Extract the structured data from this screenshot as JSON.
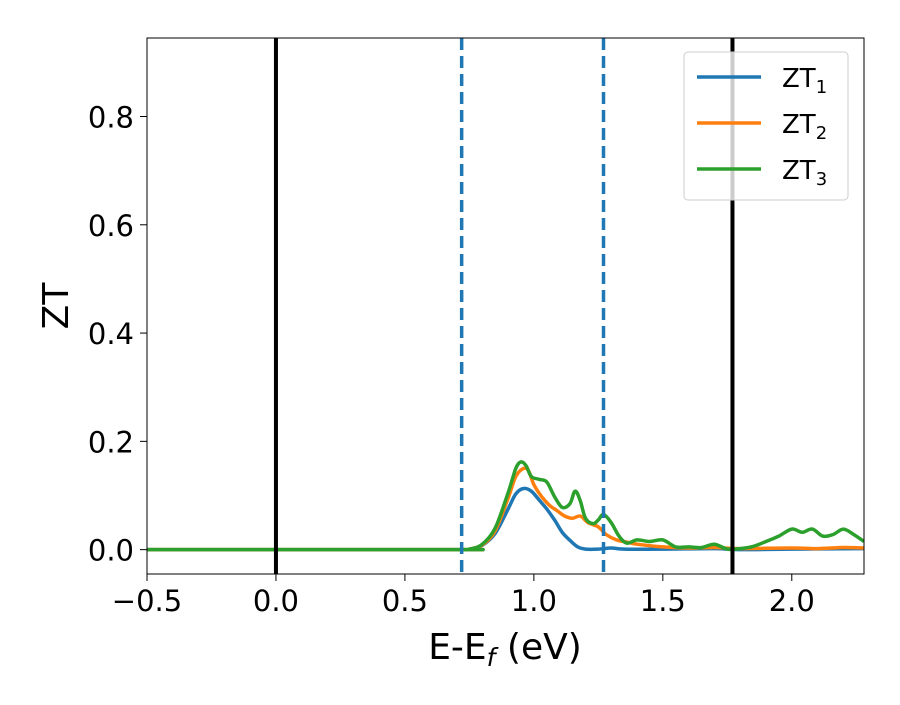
{
  "chart_data": {
    "type": "line",
    "title": "",
    "xlabel": {
      "main": "E-E",
      "sub": "f",
      "unit": " (eV)"
    },
    "ylabel": "ZT",
    "xlim": [
      -0.5,
      2.28
    ],
    "ylim": [
      -0.045,
      0.945
    ],
    "xticks": [
      -0.5,
      0.0,
      0.5,
      1.0,
      1.5,
      2.0
    ],
    "xtick_labels": [
      "−0.5",
      "0.0",
      "0.5",
      "1.0",
      "1.5",
      "2.0"
    ],
    "yticks": [
      0.0,
      0.2,
      0.4,
      0.6,
      0.8
    ],
    "ytick_labels": [
      "0.0",
      "0.2",
      "0.4",
      "0.6",
      "0.8"
    ],
    "grid": false,
    "legend_position": "top-right",
    "vertical_lines": [
      {
        "x": 0.0,
        "style": "solid",
        "color": "#000000"
      },
      {
        "x": 1.77,
        "style": "solid",
        "color": "#000000"
      },
      {
        "x": 0.72,
        "style": "dashed",
        "color": "#1f77b4"
      },
      {
        "x": 1.27,
        "style": "dashed",
        "color": "#1f77b4"
      }
    ],
    "series": [
      {
        "name": "ZT",
        "subscript": "1",
        "color": "#1f77b4",
        "points": [
          [
            -0.5,
            0
          ],
          [
            0.7,
            0
          ],
          [
            0.75,
            0.001
          ],
          [
            0.8,
            0.008
          ],
          [
            0.85,
            0.03
          ],
          [
            0.9,
            0.075
          ],
          [
            0.93,
            0.103
          ],
          [
            0.96,
            0.113
          ],
          [
            0.99,
            0.108
          ],
          [
            1.02,
            0.092
          ],
          [
            1.05,
            0.075
          ],
          [
            1.08,
            0.055
          ],
          [
            1.11,
            0.032
          ],
          [
            1.14,
            0.017
          ],
          [
            1.17,
            0.005
          ],
          [
            1.2,
            0.001
          ],
          [
            1.25,
            0.001
          ],
          [
            1.3,
            0.003
          ],
          [
            1.35,
            0.001
          ],
          [
            1.5,
            0.001
          ],
          [
            1.7,
            0.002
          ],
          [
            1.8,
            0
          ],
          [
            2.0,
            0.001
          ],
          [
            2.28,
            0.002
          ]
        ]
      },
      {
        "name": "ZT",
        "subscript": "2",
        "color": "#ff7f0e",
        "points": [
          [
            -0.5,
            0
          ],
          [
            0.7,
            0
          ],
          [
            0.75,
            0.001
          ],
          [
            0.8,
            0.009
          ],
          [
            0.85,
            0.035
          ],
          [
            0.9,
            0.095
          ],
          [
            0.93,
            0.135
          ],
          [
            0.96,
            0.15
          ],
          [
            0.98,
            0.145
          ],
          [
            1.0,
            0.12
          ],
          [
            1.03,
            0.098
          ],
          [
            1.06,
            0.082
          ],
          [
            1.09,
            0.072
          ],
          [
            1.12,
            0.062
          ],
          [
            1.15,
            0.058
          ],
          [
            1.18,
            0.062
          ],
          [
            1.21,
            0.05
          ],
          [
            1.25,
            0.042
          ],
          [
            1.28,
            0.028
          ],
          [
            1.32,
            0.018
          ],
          [
            1.36,
            0.014
          ],
          [
            1.4,
            0.01
          ],
          [
            1.5,
            0.005
          ],
          [
            1.6,
            0.003
          ],
          [
            1.7,
            0.004
          ],
          [
            1.8,
            0.002
          ],
          [
            2.0,
            0.003
          ],
          [
            2.1,
            0.002
          ],
          [
            2.2,
            0.004
          ],
          [
            2.28,
            0.003
          ]
        ]
      },
      {
        "name": "ZT",
        "subscript": "3",
        "color": "#2ca02c",
        "points": [
          [
            -0.5,
            0
          ],
          [
            0.7,
            0
          ],
          [
            0.75,
            0.001
          ],
          [
            0.8,
            0.01
          ],
          [
            0.85,
            0.04
          ],
          [
            0.9,
            0.105
          ],
          [
            0.93,
            0.15
          ],
          [
            0.95,
            0.162
          ],
          [
            0.97,
            0.155
          ],
          [
            0.99,
            0.135
          ],
          [
            1.02,
            0.13
          ],
          [
            1.05,
            0.125
          ],
          [
            1.08,
            0.098
          ],
          [
            1.11,
            0.078
          ],
          [
            1.14,
            0.085
          ],
          [
            1.16,
            0.108
          ],
          [
            1.18,
            0.09
          ],
          [
            1.2,
            0.058
          ],
          [
            1.23,
            0.048
          ],
          [
            1.25,
            0.055
          ],
          [
            1.27,
            0.065
          ],
          [
            1.3,
            0.05
          ],
          [
            1.33,
            0.025
          ],
          [
            1.36,
            0.012
          ],
          [
            1.4,
            0.018
          ],
          [
            1.45,
            0.015
          ],
          [
            1.5,
            0.018
          ],
          [
            1.55,
            0.005
          ],
          [
            1.6,
            0.005
          ],
          [
            1.65,
            0.004
          ],
          [
            1.7,
            0.01
          ],
          [
            1.75,
            0.001
          ],
          [
            1.8,
            0.002
          ],
          [
            1.85,
            0.006
          ],
          [
            1.9,
            0.015
          ],
          [
            1.95,
            0.025
          ],
          [
            2.0,
            0.038
          ],
          [
            2.04,
            0.032
          ],
          [
            2.08,
            0.038
          ],
          [
            2.12,
            0.025
          ],
          [
            2.16,
            0.028
          ],
          [
            2.2,
            0.038
          ],
          [
            2.24,
            0.028
          ],
          [
            2.28,
            0.015
          ]
        ]
      }
    ]
  }
}
